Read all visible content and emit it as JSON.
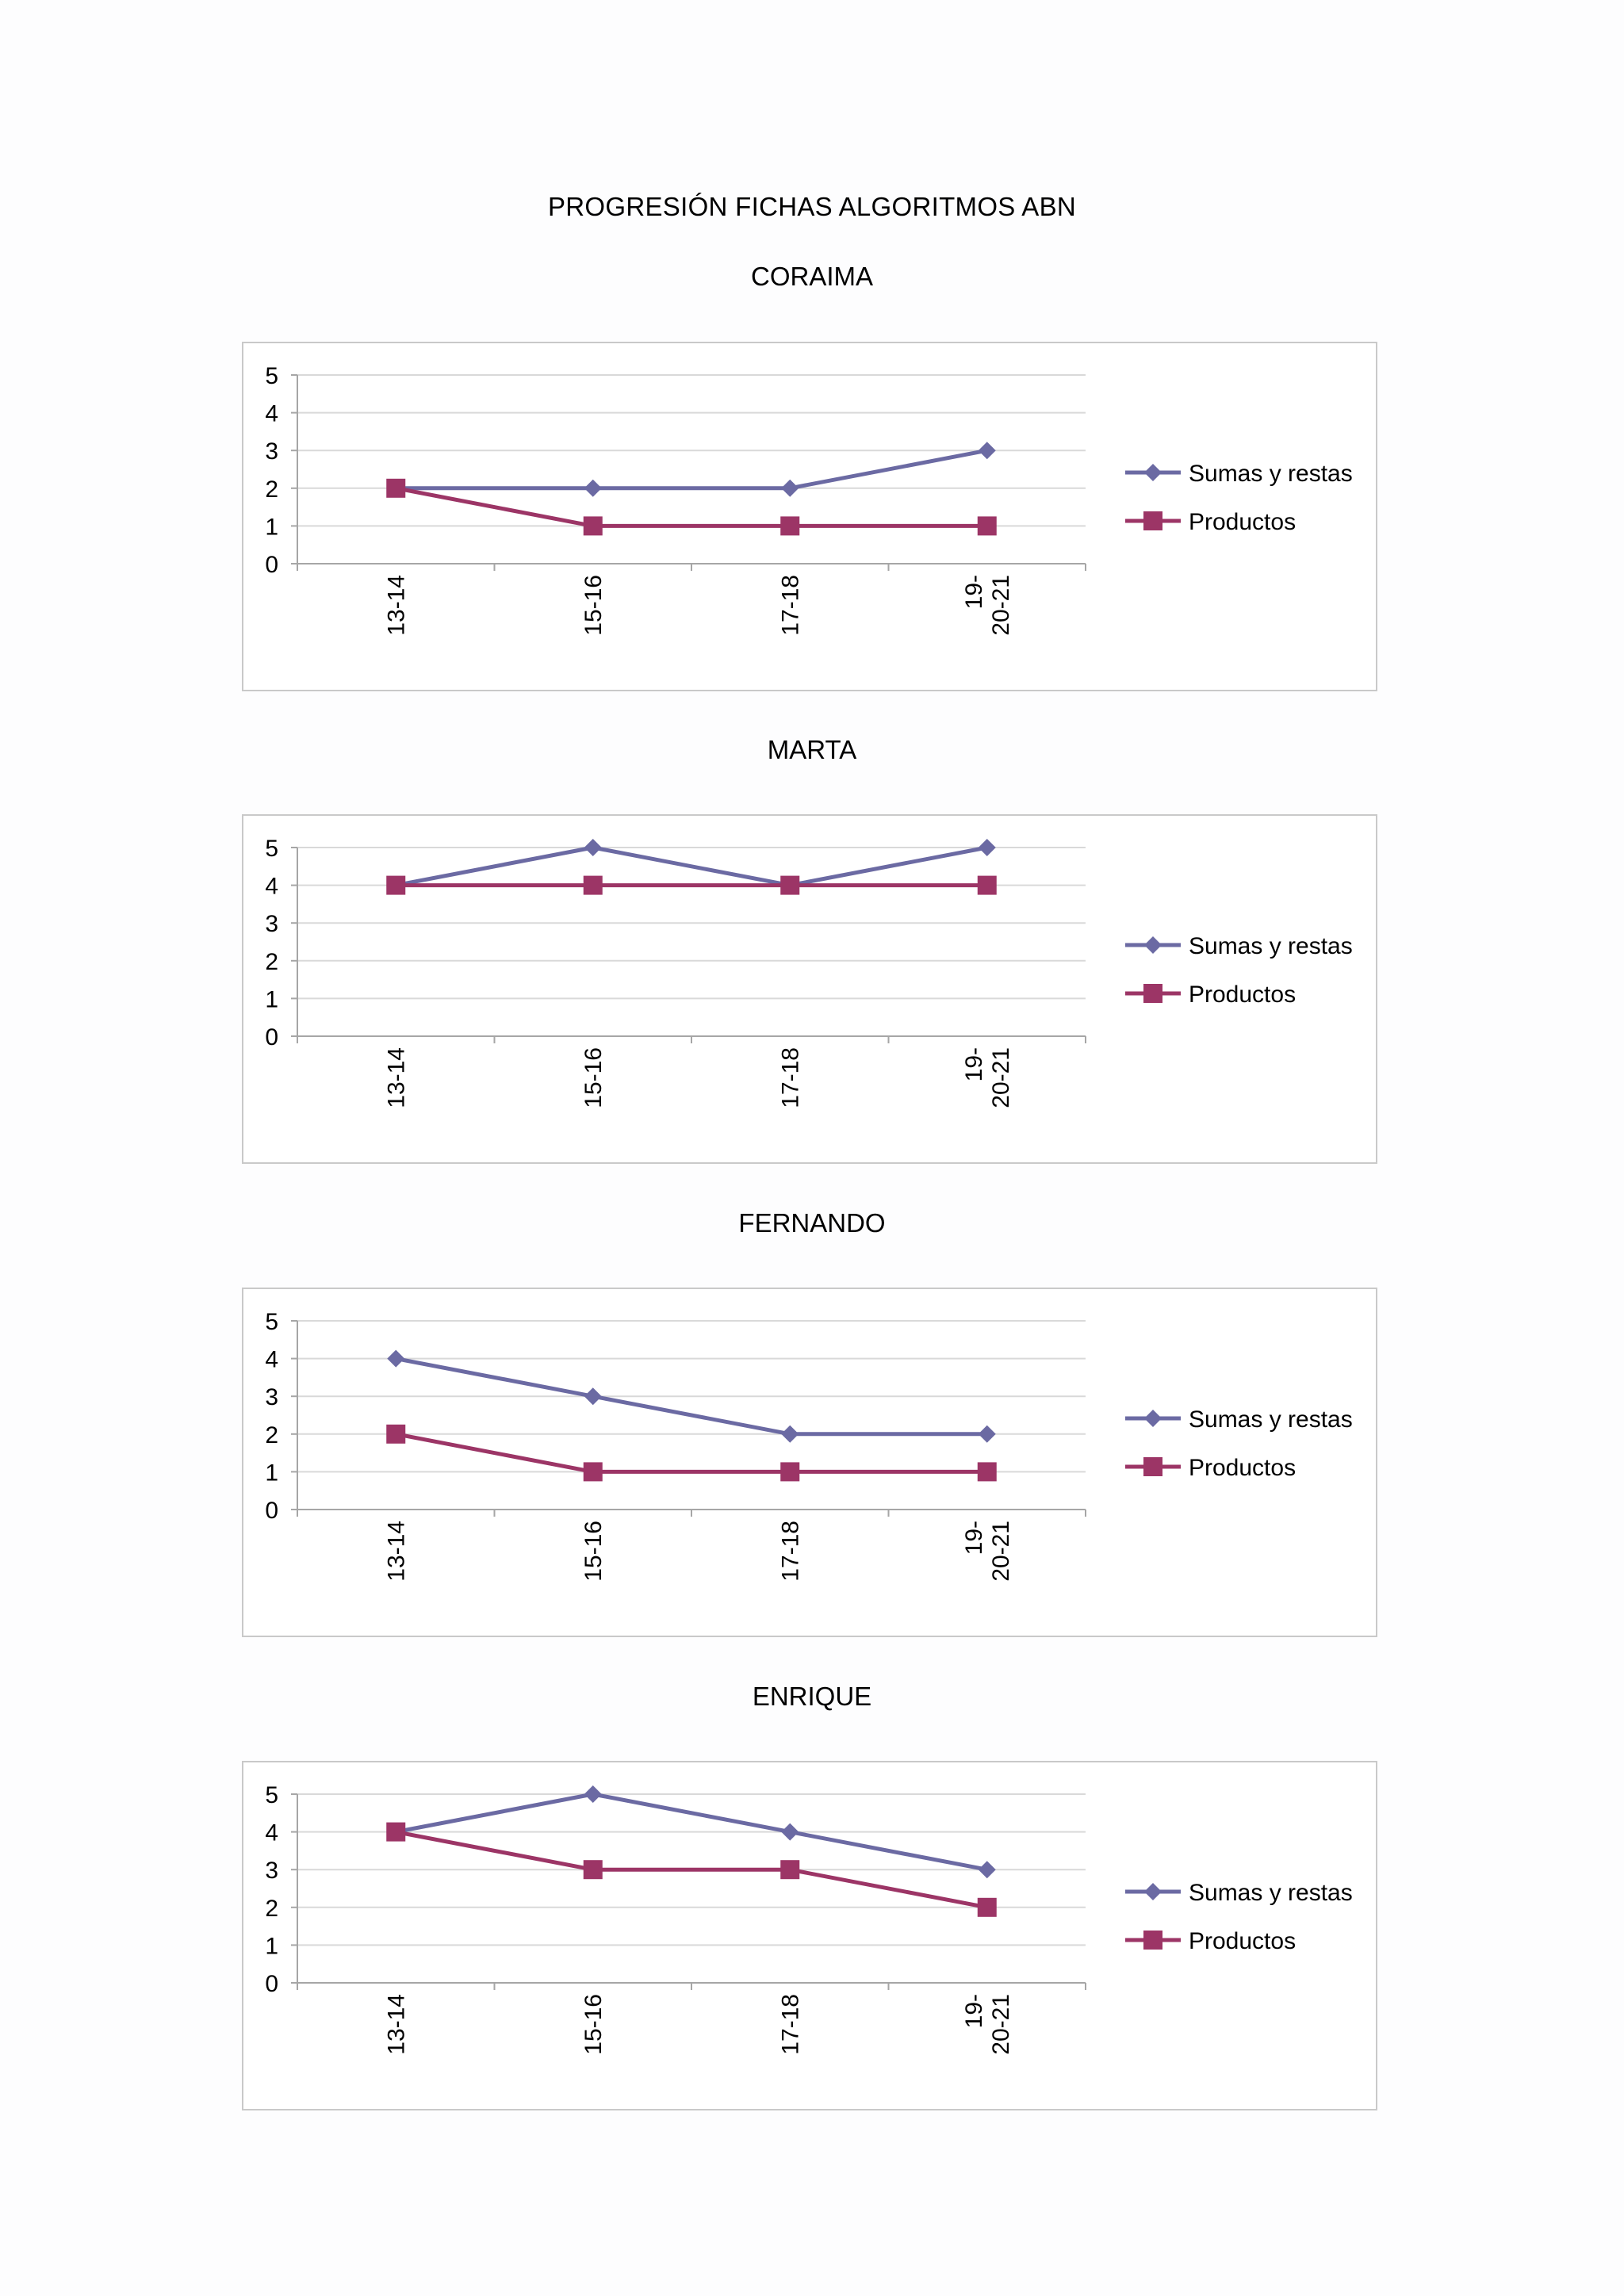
{
  "page_title": "PROGRESIÓN FICHAS ALGORITMOS ABN",
  "colors": {
    "sumas": "#6b6aa3",
    "productos": "#9c3566",
    "grid": "#d9d9d9",
    "axis": "#a6a6a6"
  },
  "chart_data": [
    {
      "type": "line",
      "title": "CORAIMA",
      "categories": [
        [
          "13-14"
        ],
        [
          "15-16"
        ],
        [
          "17-18"
        ],
        [
          "19-",
          "20-21"
        ]
      ],
      "ylim": [
        0,
        5
      ],
      "yticks": [
        0,
        1,
        2,
        3,
        4,
        5
      ],
      "series": [
        {
          "name": "Sumas y restas",
          "marker": "diamond",
          "values": [
            2,
            2,
            2,
            3
          ]
        },
        {
          "name": "Productos",
          "marker": "square",
          "values": [
            2,
            1,
            1,
            1
          ]
        }
      ]
    },
    {
      "type": "line",
      "title": "MARTA",
      "categories": [
        [
          "13-14"
        ],
        [
          "15-16"
        ],
        [
          "17-18"
        ],
        [
          "19-",
          "20-21"
        ]
      ],
      "ylim": [
        0,
        5
      ],
      "yticks": [
        0,
        1,
        2,
        3,
        4,
        5
      ],
      "series": [
        {
          "name": "Sumas y restas",
          "marker": "diamond",
          "values": [
            4,
            5,
            4,
            5
          ]
        },
        {
          "name": "Productos",
          "marker": "square",
          "values": [
            4,
            4,
            4,
            4
          ]
        }
      ]
    },
    {
      "type": "line",
      "title": "FERNANDO",
      "categories": [
        [
          "13-14"
        ],
        [
          "15-16"
        ],
        [
          "17-18"
        ],
        [
          "19-",
          "20-21"
        ]
      ],
      "ylim": [
        0,
        5
      ],
      "yticks": [
        0,
        1,
        2,
        3,
        4,
        5
      ],
      "series": [
        {
          "name": "Sumas y restas",
          "marker": "diamond",
          "values": [
            4,
            3,
            2,
            2
          ]
        },
        {
          "name": "Productos",
          "marker": "square",
          "values": [
            2,
            1,
            1,
            1
          ]
        }
      ]
    },
    {
      "type": "line",
      "title": "ENRIQUE",
      "categories": [
        [
          "13-14"
        ],
        [
          "15-16"
        ],
        [
          "17-18"
        ],
        [
          "19-",
          "20-21"
        ]
      ],
      "ylim": [
        0,
        5
      ],
      "yticks": [
        0,
        1,
        2,
        3,
        4,
        5
      ],
      "series": [
        {
          "name": "Sumas y restas",
          "marker": "diamond",
          "values": [
            4,
            5,
            4,
            3
          ]
        },
        {
          "name": "Productos",
          "marker": "square",
          "values": [
            4,
            3,
            3,
            2
          ]
        }
      ]
    }
  ]
}
